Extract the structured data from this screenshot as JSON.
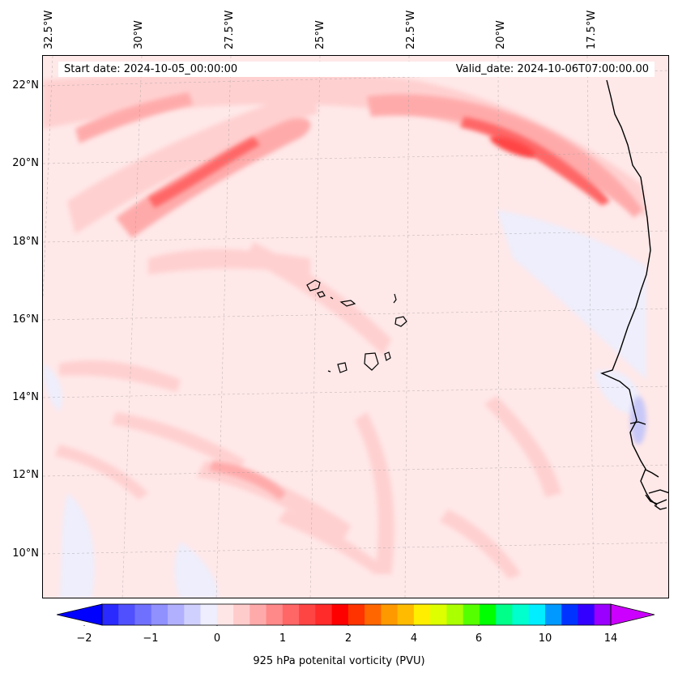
{
  "map": {
    "start_date_text": "Start date: 2024-10-05_00:00:00",
    "valid_date_text": "Valid_date: 2024-10-06T07:00:00.00",
    "longitude_labels": [
      "32.5°W",
      "30°W",
      "27.5°W",
      "25°W",
      "22.5°W",
      "20°W",
      "17.5°W"
    ],
    "latitude_labels": [
      "22°N",
      "20°N",
      "18°N",
      "16°N",
      "14°N",
      "12°N",
      "10°N"
    ]
  },
  "colorbar": {
    "label": "925 hPa potenital vorticity (PVU)",
    "ticks": [
      "−2",
      "−1",
      "0",
      "1",
      "2",
      "4",
      "6",
      "10",
      "14"
    ],
    "colors": [
      "#0000ff",
      "#2a2aff",
      "#5050ff",
      "#7070ff",
      "#9090ff",
      "#b0b0ff",
      "#d0d0ff",
      "#eeeeff",
      "#ffe6e6",
      "#ffcccc",
      "#ffaaaa",
      "#ff8888",
      "#ff6666",
      "#ff4444",
      "#ff2a2a",
      "#ff0000",
      "#ff3300",
      "#ff6600",
      "#ff9900",
      "#ffbb00",
      "#ffee00",
      "#ddff00",
      "#aaff00",
      "#55ff00",
      "#00ff00",
      "#00ff88",
      "#00ffcc",
      "#00eeff",
      "#0099ff",
      "#0033ff",
      "#3300ff",
      "#9900ff",
      "#cc00ff"
    ]
  }
}
